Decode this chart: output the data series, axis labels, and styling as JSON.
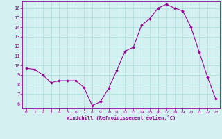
{
  "x": [
    0,
    1,
    2,
    3,
    4,
    5,
    6,
    7,
    8,
    9,
    10,
    11,
    12,
    13,
    14,
    15,
    16,
    17,
    18,
    19,
    20,
    21,
    22,
    23
  ],
  "y": [
    9.7,
    9.6,
    9.0,
    8.2,
    8.4,
    8.4,
    8.4,
    7.7,
    5.8,
    6.2,
    7.6,
    9.5,
    11.5,
    11.9,
    14.2,
    14.9,
    16.0,
    16.4,
    16.0,
    15.7,
    14.0,
    11.4,
    8.8,
    6.5
  ],
  "line_color": "#990099",
  "marker": "D",
  "marker_size": 1.8,
  "bg_color": "#d4f0f0",
  "grid_color": "#aadddd",
  "xlabel": "Windchill (Refroidissement éolien,°C)",
  "xlabel_color": "#990099",
  "tick_color": "#990099",
  "ylim": [
    5.5,
    16.7
  ],
  "yticks": [
    6,
    7,
    8,
    9,
    10,
    11,
    12,
    13,
    14,
    15,
    16
  ],
  "xlim": [
    -0.5,
    23.5
  ],
  "xticks": [
    0,
    1,
    2,
    3,
    4,
    5,
    6,
    7,
    8,
    9,
    10,
    11,
    12,
    13,
    14,
    15,
    16,
    17,
    18,
    19,
    20,
    21,
    22,
    23
  ]
}
